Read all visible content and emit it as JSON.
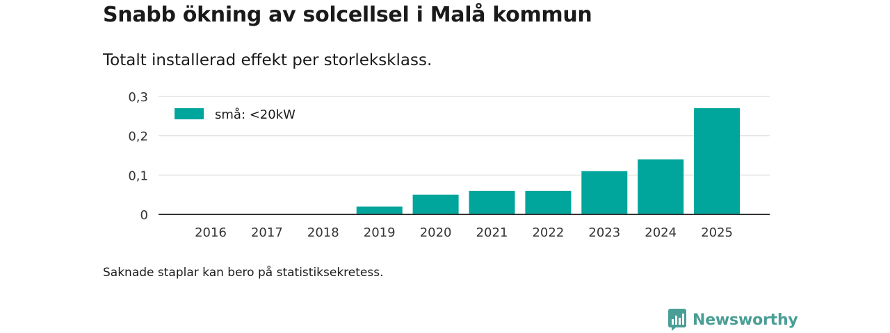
{
  "title": "Snabb ökning av solcellsel i Malå kommun",
  "subtitle": "Totalt installerad effekt per storleksklass.",
  "note": "Saknade staplar kan bero på statistiksekretess.",
  "brand": "Newsworthy",
  "colors": {
    "bar": "#00a59b",
    "grid": "#dddddd",
    "axis": "#333333",
    "brand": "#4a9e96"
  },
  "chart_data": {
    "type": "bar",
    "categories": [
      "2016",
      "2017",
      "2018",
      "2019",
      "2020",
      "2021",
      "2022",
      "2023",
      "2024",
      "2025"
    ],
    "series": [
      {
        "name": "små: <20kW",
        "values": [
          0,
          0,
          0,
          0.02,
          0.05,
          0.06,
          0.06,
          0.11,
          0.14,
          0.27
        ]
      }
    ],
    "yticks": [
      0,
      0.1,
      0.2,
      0.3
    ],
    "ytick_labels": [
      "0",
      "0,1",
      "0,2",
      "0,3"
    ],
    "ylim": [
      0,
      0.3
    ],
    "grid": true,
    "legend": "top-left",
    "xlabel": "",
    "ylabel": ""
  }
}
